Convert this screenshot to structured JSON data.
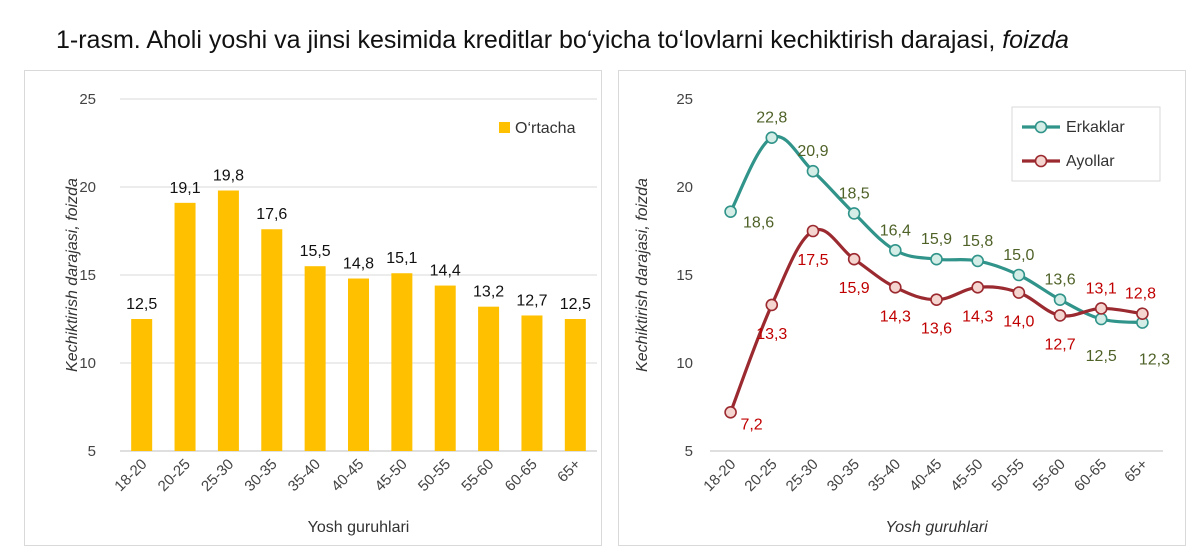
{
  "figure": {
    "title_prefix": "1-rasm.",
    "title_main": "Aholi yoshi va jinsi kesimida kreditlar bo‘yicha to‘lovlarni kechiktirish darajasi,",
    "title_unit": "foizda"
  },
  "colors": {
    "bar": "#FFC000",
    "men": "#31948A",
    "men_marker_fill": "#D4EDE6",
    "women": "#9B2A30",
    "women_marker_fill": "#F5D5CF",
    "men_label": "#4F6228",
    "women_label": "#C00000"
  },
  "chart_data": [
    {
      "type": "bar",
      "categories": [
        "18-20",
        "20-25",
        "25-30",
        "30-35",
        "35-40",
        "40-45",
        "45-50",
        "50-55",
        "55-60",
        "60-65",
        "65+"
      ],
      "series": [
        {
          "name": "O‘rtacha",
          "values": [
            12.5,
            19.1,
            19.8,
            17.6,
            15.5,
            14.8,
            15.1,
            14.4,
            13.2,
            12.7,
            12.5
          ],
          "labels": [
            "12,5",
            "19,1",
            "19,8",
            "17,6",
            "15,5",
            "14,8",
            "15,1",
            "14,4",
            "13,2",
            "12,7",
            "12,5"
          ]
        }
      ],
      "ylim": [
        5,
        25
      ],
      "yticks": [
        5,
        10,
        15,
        20,
        25
      ],
      "xlabel": "Yosh guruhlari",
      "ylabel": "Kechiktirish darajasi, foizda",
      "legend": "top-right",
      "grid": true
    },
    {
      "type": "line",
      "categories": [
        "18-20",
        "20-25",
        "25-30",
        "30-35",
        "35-40",
        "40-45",
        "45-50",
        "50-55",
        "55-60",
        "60-65",
        "65+"
      ],
      "series": [
        {
          "name": "Erkaklar",
          "values": [
            18.6,
            22.8,
            20.9,
            18.5,
            16.4,
            15.9,
            15.8,
            15.0,
            13.6,
            12.5,
            12.3
          ],
          "labels": [
            "18,6",
            "22,8",
            "20,9",
            "18,5",
            "16,4",
            "15,9",
            "15,8",
            "15,0",
            "13,6",
            "12,5",
            "12,3"
          ]
        },
        {
          "name": "Ayollar",
          "values": [
            7.2,
            13.3,
            17.5,
            15.9,
            14.3,
            13.6,
            14.3,
            14.0,
            12.7,
            13.1,
            12.8
          ],
          "labels": [
            "7,2",
            "13,3",
            "17,5",
            "15,9",
            "14,3",
            "13,6",
            "14,3",
            "14,0",
            "12,7",
            "13,1",
            "12,8"
          ]
        }
      ],
      "ylim": [
        5,
        25
      ],
      "yticks": [
        5,
        10,
        15,
        20,
        25
      ],
      "xlabel": "Yosh guruhlari",
      "ylabel": "Kechiktirish darajasi, foizda",
      "legend": "top-right",
      "grid": false
    }
  ]
}
